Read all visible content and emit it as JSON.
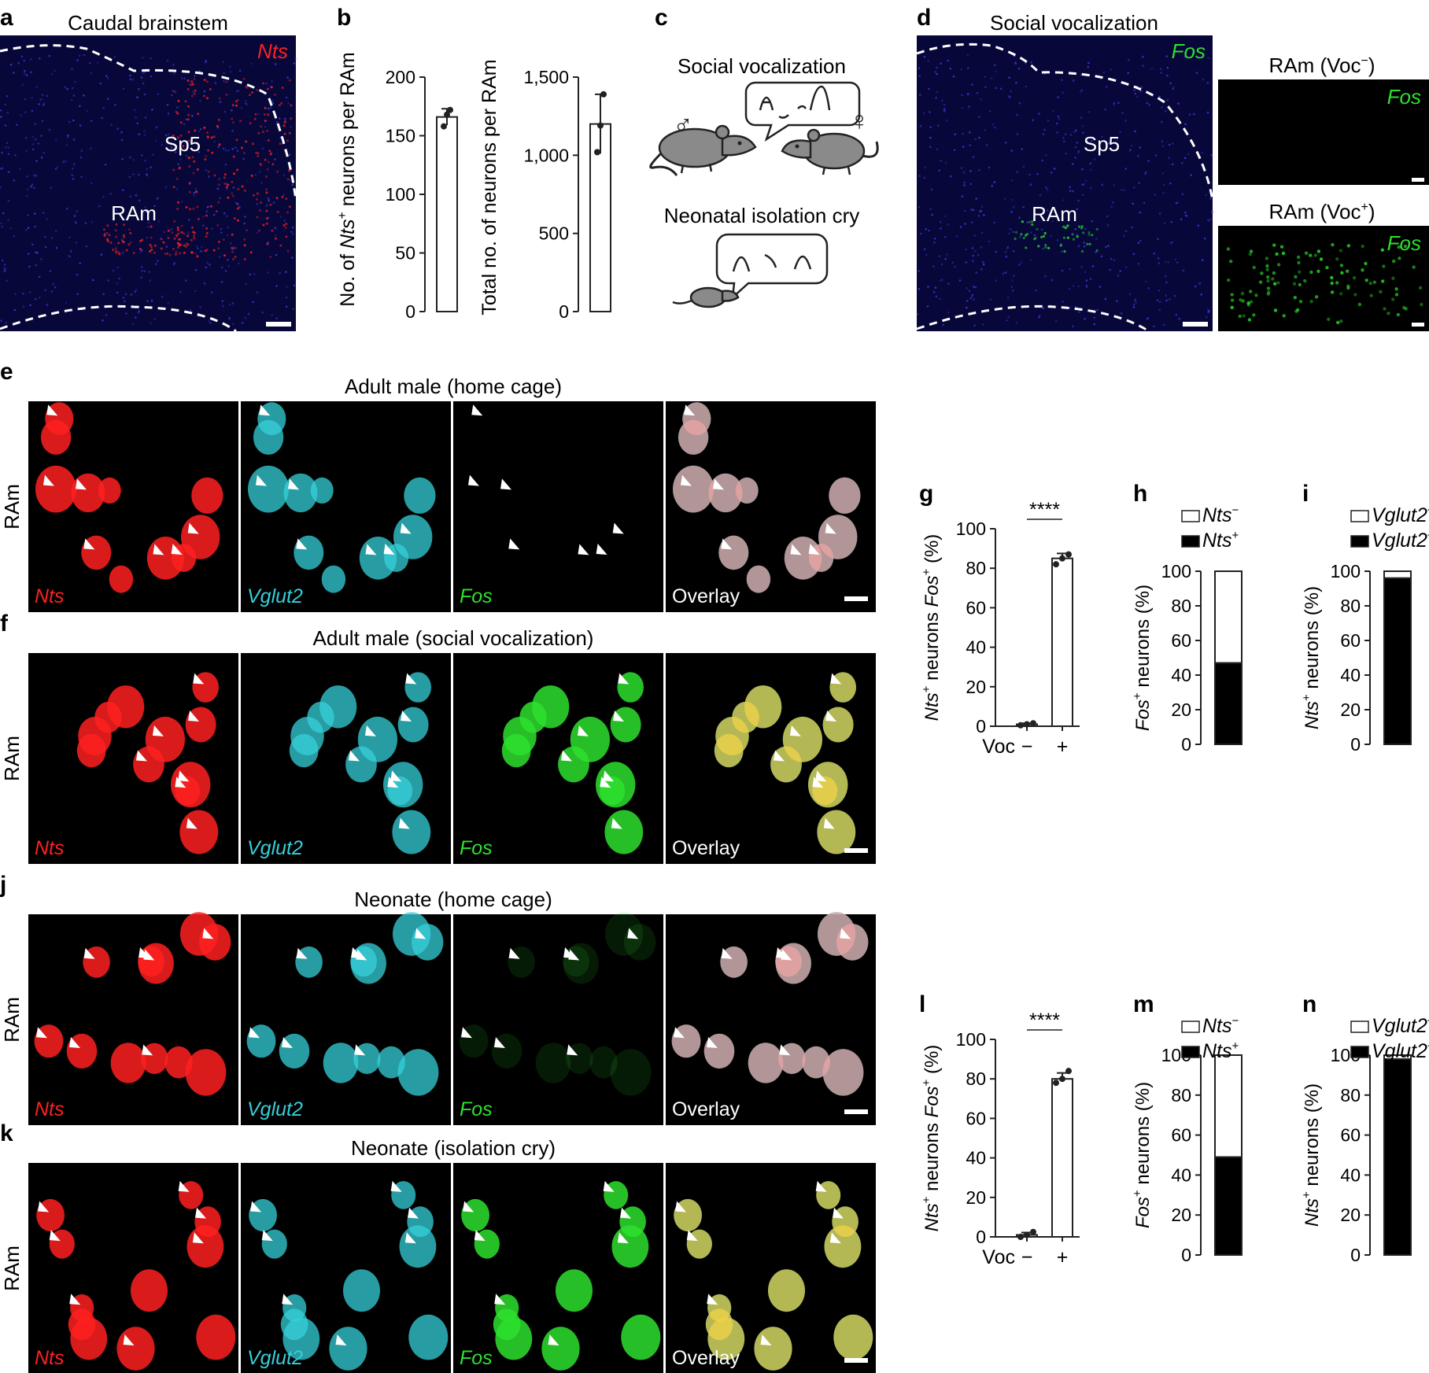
{
  "colors": {
    "red": "#ff2020",
    "cyan": "#35d0da",
    "green": "#2ee02e",
    "blue": "#1a1aa0",
    "bg": "#000000"
  },
  "panel_letters": {
    "a": "a",
    "b": "b",
    "c": "c",
    "d": "d",
    "e": "e",
    "f": "f",
    "g": "g",
    "h": "h",
    "i": "i",
    "j": "j",
    "k": "k",
    "l": "l",
    "m": "m",
    "n": "n"
  },
  "panel_a": {
    "title": "Caudal brainstem",
    "gene": "Nts",
    "region1": "Sp5",
    "region2": "RAm"
  },
  "panel_b": {
    "chart_data": [
      {
        "type": "bar",
        "ylabel_parts": [
          "No. of ",
          "Nts",
          "+",
          " neurons per RAm"
        ],
        "yticks": [
          "0",
          "50",
          "100",
          "150",
          "200"
        ],
        "ylim": [
          0,
          200
        ],
        "values": [
          166
        ],
        "error": [
          7
        ],
        "points": [
          158,
          168,
          172
        ]
      },
      {
        "type": "bar",
        "ylabel": "Total no. of neurons per RAm",
        "yticks": [
          "0",
          "500",
          "1,000",
          "1,500"
        ],
        "ylim": [
          0,
          1500
        ],
        "values": [
          1200
        ],
        "error": [
          190
        ],
        "points": [
          1020,
          1190,
          1390
        ]
      }
    ]
  },
  "panel_c": {
    "label1": "Social vocalization",
    "label2": "Neonatal isolation cry",
    "male_symbol": "♂",
    "female_symbol": "♀"
  },
  "panel_d": {
    "title": "Social vocalization",
    "gene": "Fos",
    "region1": "Sp5",
    "region2": "RAm",
    "inset1_title_parts": [
      "RAm (Voc",
      "−",
      ")"
    ],
    "inset2_title_parts": [
      "RAm (Voc",
      "+",
      ")"
    ]
  },
  "row_titles": {
    "e": "Adult male (home cage)",
    "f": "Adult male (social vocalization)",
    "j": "Neonate (home cage)",
    "k": "Neonate (isolation cry)"
  },
  "row_side_label": "RAm",
  "channels": [
    "Nts",
    "Vglut2",
    "Fos",
    "Overlay"
  ],
  "panel_g": {
    "chart_data": {
      "type": "bar",
      "categories": [
        "−",
        "+"
      ],
      "values": [
        1,
        85
      ],
      "error": [
        0.5,
        2.5
      ],
      "points": [
        [
          0.5,
          1,
          1.5
        ],
        [
          82,
          85,
          87
        ]
      ],
      "yticks": [
        "0",
        "20",
        "40",
        "60",
        "80",
        "100"
      ],
      "ylim": [
        0,
        100
      ],
      "xlabel": "Voc",
      "ylabel_parts": [
        "Nts",
        "+",
        " neurons ",
        "Fos",
        "+",
        " (%)"
      ],
      "significance": "****"
    }
  },
  "panel_h": {
    "chart_data": {
      "type": "stacked-bar",
      "series": [
        {
          "name_parts": [
            "Nts",
            "−"
          ],
          "value": 53
        },
        {
          "name_parts": [
            "Nts",
            "+"
          ],
          "value": 47
        }
      ],
      "yticks": [
        "0",
        "20",
        "40",
        "60",
        "80",
        "100"
      ],
      "ylim": [
        0,
        100
      ],
      "ylabel_parts": [
        "Fos",
        "+",
        " neurons (%)"
      ]
    }
  },
  "panel_i": {
    "chart_data": {
      "type": "stacked-bar",
      "series": [
        {
          "name_parts": [
            "Vglut2",
            "−"
          ],
          "value": 4
        },
        {
          "name_parts": [
            "Vglut2",
            "+"
          ],
          "value": 96
        }
      ],
      "yticks": [
        "0",
        "20",
        "40",
        "60",
        "80",
        "100"
      ],
      "ylim": [
        0,
        100
      ],
      "ylabel_parts": [
        "Nts",
        "+",
        " neurons (%)"
      ]
    }
  },
  "panel_l": {
    "chart_data": {
      "type": "bar",
      "categories": [
        "−",
        "+"
      ],
      "values": [
        1,
        80
      ],
      "error": [
        1.2,
        3
      ],
      "points": [
        [
          0,
          1,
          2.5
        ],
        [
          78,
          80,
          84
        ]
      ],
      "yticks": [
        "0",
        "20",
        "40",
        "60",
        "80",
        "100"
      ],
      "ylim": [
        0,
        100
      ],
      "xlabel": "Voc",
      "ylabel_parts": [
        "Nts",
        "+",
        " neurons ",
        "Fos",
        "+",
        " (%)"
      ],
      "significance": "****"
    }
  },
  "panel_m": {
    "chart_data": {
      "type": "stacked-bar",
      "series": [
        {
          "name_parts": [
            "Nts",
            "−"
          ],
          "value": 51
        },
        {
          "name_parts": [
            "Nts",
            "+"
          ],
          "value": 49
        }
      ],
      "yticks": [
        "0",
        "20",
        "40",
        "60",
        "80",
        "100"
      ],
      "ylim": [
        0,
        100
      ],
      "ylabel_parts": [
        "Fos",
        "+",
        " neurons (%)"
      ]
    }
  },
  "panel_n": {
    "chart_data": {
      "type": "stacked-bar",
      "series": [
        {
          "name_parts": [
            "Vglut2",
            "−"
          ],
          "value": 2
        },
        {
          "name_parts": [
            "Vglut2",
            "+"
          ],
          "value": 98
        }
      ],
      "yticks": [
        "0",
        "20",
        "40",
        "60",
        "80",
        "100"
      ],
      "ylim": [
        0,
        100
      ],
      "ylabel_parts": [
        "Nts",
        "+",
        " neurons (%)"
      ]
    }
  }
}
